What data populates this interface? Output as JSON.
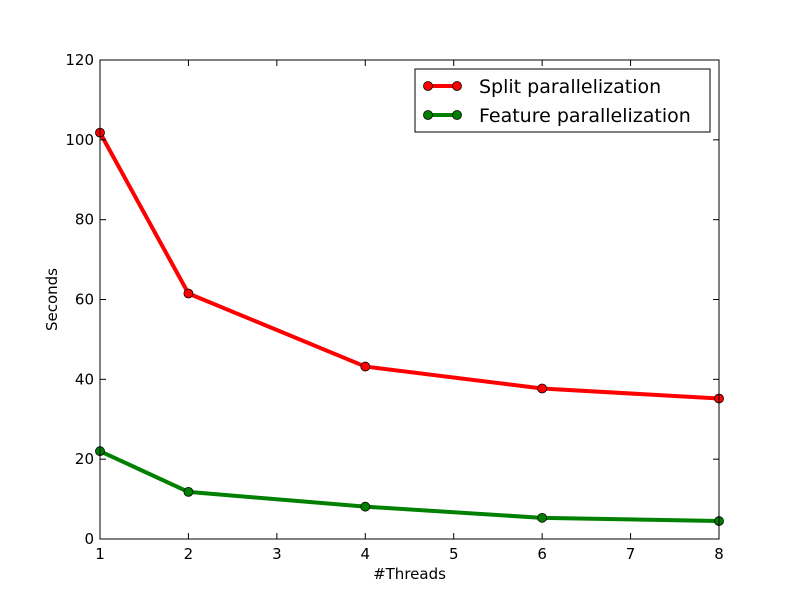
{
  "chart_data": {
    "type": "line",
    "title": "",
    "xlabel": "#Threads",
    "ylabel": "Seconds",
    "xlim": [
      1,
      8
    ],
    "ylim": [
      0,
      120
    ],
    "xticks": [
      1,
      2,
      3,
      4,
      5,
      6,
      7,
      8
    ],
    "yticks": [
      0,
      20,
      40,
      60,
      80,
      100,
      120
    ],
    "grid": false,
    "legend_position": "top-right",
    "series": [
      {
        "name": "Split parallelization",
        "color": "#ff0000",
        "x": [
          1,
          2,
          4,
          6,
          8
        ],
        "y": [
          101.8,
          61.5,
          43.2,
          37.7,
          35.2
        ]
      },
      {
        "name": "Feature parallelization",
        "color": "#008000",
        "x": [
          1,
          2,
          4,
          6,
          8
        ],
        "y": [
          22.0,
          11.8,
          8.1,
          5.3,
          4.5
        ]
      }
    ]
  }
}
